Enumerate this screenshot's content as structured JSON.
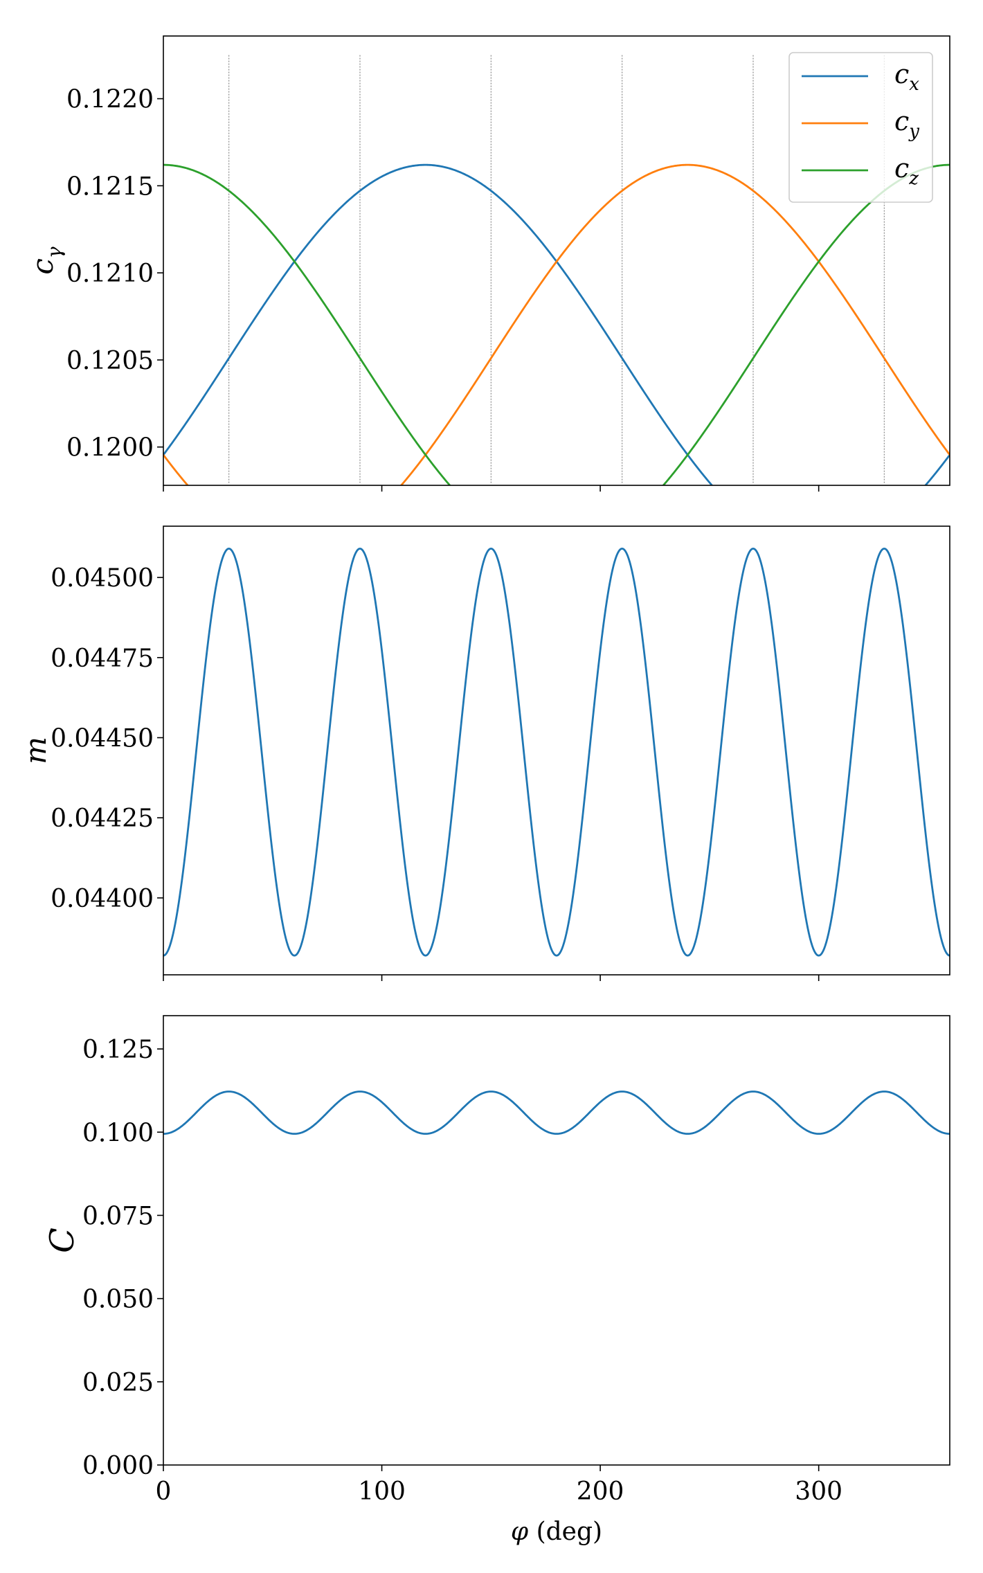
{
  "colors": {
    "blue": "#1f77b4",
    "orange": "#ff7f0e",
    "green": "#2ca02c",
    "guide": "#7f7f7f"
  },
  "chart_data": [
    {
      "type": "line",
      "ylabel": "c_γ",
      "ylabel_main": "c",
      "ylabel_sub": "γ",
      "xlim": [
        0,
        360
      ],
      "ylim": [
        0.11978,
        0.12236
      ],
      "yticks": [
        0.12,
        0.1205,
        0.121,
        0.1215,
        0.122
      ],
      "ytick_labels": [
        "0.1200",
        "0.1205",
        "0.1210",
        "0.1215",
        "0.1220"
      ],
      "xticks": [
        0,
        100,
        200,
        300
      ],
      "show_xtick_labels": false,
      "vlines": [
        30,
        90,
        150,
        210,
        270,
        330
      ],
      "vline_range": [
        0.11979,
        0.12225
      ],
      "legend_position": "top-right",
      "grid": false,
      "series": [
        {
          "name": "c_x",
          "name_main": "c",
          "name_sub": "x",
          "color": "#1f77b4",
          "mean": 0.12051,
          "amplitude": 0.00111,
          "phase_deg": 120,
          "period_deg": 360
        },
        {
          "name": "c_y",
          "name_main": "c",
          "name_sub": "y",
          "color": "#ff7f0e",
          "mean": 0.12051,
          "amplitude": 0.00111,
          "phase_deg": 240,
          "period_deg": 360
        },
        {
          "name": "c_z",
          "name_main": "c",
          "name_sub": "z",
          "color": "#2ca02c",
          "mean": 0.12051,
          "amplitude": 0.00111,
          "phase_deg": 0,
          "period_deg": 360
        }
      ]
    },
    {
      "type": "line",
      "ylabel": "m",
      "xlim": [
        0,
        360
      ],
      "ylim": [
        0.04376,
        0.04516
      ],
      "yticks": [
        0.044,
        0.04425,
        0.0445,
        0.04475,
        0.045
      ],
      "ytick_labels": [
        "0.04400",
        "0.04425",
        "0.04450",
        "0.04475",
        "0.04500"
      ],
      "xticks": [
        0,
        100,
        200,
        300
      ],
      "show_xtick_labels": false,
      "grid": false,
      "series": [
        {
          "name": "",
          "color": "#1f77b4",
          "min": 0.04382,
          "max": 0.04509,
          "peaks_deg": [
            30,
            90,
            150,
            210,
            270,
            330
          ],
          "valleys_deg": [
            0,
            60,
            120,
            180,
            240,
            300,
            360
          ]
        }
      ]
    },
    {
      "type": "line",
      "ylabel": "C",
      "xlabel": "φ (deg)",
      "xlabel_var": "φ",
      "xlabel_unit": "(deg)",
      "xlim": [
        0,
        360
      ],
      "ylim": [
        0,
        0.135
      ],
      "yticks": [
        0.0,
        0.025,
        0.05,
        0.075,
        0.1,
        0.125
      ],
      "ytick_labels": [
        "0.000",
        "0.025",
        "0.050",
        "0.075",
        "0.100",
        "0.125"
      ],
      "xticks": [
        0,
        100,
        200,
        300
      ],
      "xtick_labels": [
        "0",
        "100",
        "200",
        "300"
      ],
      "show_xtick_labels": true,
      "grid": false,
      "series": [
        {
          "name": "",
          "color": "#1f77b4",
          "min": 0.0995,
          "max": 0.1122,
          "peaks_deg": [
            30,
            90,
            150,
            210,
            270,
            330
          ],
          "valleys_deg": [
            0,
            60,
            120,
            180,
            240,
            300,
            360
          ]
        }
      ]
    }
  ]
}
